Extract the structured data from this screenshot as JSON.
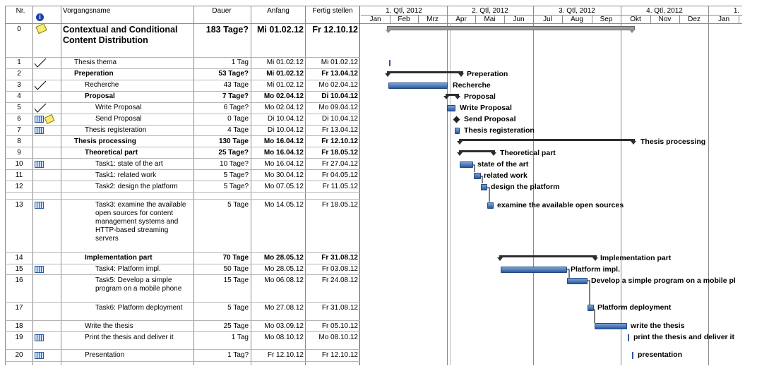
{
  "headers": {
    "nr": "Nr.",
    "name": "Vorgangsname",
    "dauer": "Dauer",
    "anfang": "Anfang",
    "fertig": "Fertig stellen"
  },
  "timeline": {
    "quarters": [
      "1. Qtl, 2012",
      "2. Qtl, 2012",
      "3. Qtl, 2012",
      "4. Qtl, 2012",
      "1."
    ],
    "months": [
      "Jan",
      "Feb",
      "Mrz",
      "Apr",
      "Mai",
      "Jun",
      "Jul",
      "Aug",
      "Sep",
      "Okt",
      "Nov",
      "Dez",
      "Jan"
    ]
  },
  "tasks": [
    {
      "nr": "0",
      "name": "Contextual and Conditional Content Distribution",
      "dauer": "183 Tage?",
      "anfang": "Mi 01.02.12",
      "fertig": "Fr 12.10.12"
    },
    {
      "nr": "1",
      "name": "Thesis thema",
      "dauer": "1 Tag",
      "anfang": "Mi 01.02.12",
      "fertig": "Mi 01.02.12"
    },
    {
      "nr": "2",
      "name": "Preperation",
      "dauer": "53 Tage?",
      "anfang": "Mi 01.02.12",
      "fertig": "Fr 13.04.12"
    },
    {
      "nr": "3",
      "name": "Recherche",
      "dauer": "43 Tage",
      "anfang": "Mi 01.02.12",
      "fertig": "Mo 02.04.12"
    },
    {
      "nr": "4",
      "name": "Proposal",
      "dauer": "7 Tage?",
      "anfang": "Mo 02.04.12",
      "fertig": "Di 10.04.12"
    },
    {
      "nr": "5",
      "name": "Write Proposal",
      "dauer": "6 Tage?",
      "anfang": "Mo 02.04.12",
      "fertig": "Mo 09.04.12"
    },
    {
      "nr": "6",
      "name": "Send Proposal",
      "dauer": "0 Tage",
      "anfang": "Di 10.04.12",
      "fertig": "Di 10.04.12"
    },
    {
      "nr": "7",
      "name": "Thesis registeration",
      "dauer": "4 Tage",
      "anfang": "Di 10.04.12",
      "fertig": "Fr 13.04.12"
    },
    {
      "nr": "8",
      "name": "Thesis processing",
      "dauer": "130 Tage",
      "anfang": "Mo 16.04.12",
      "fertig": "Fr 12.10.12"
    },
    {
      "nr": "9",
      "name": "Theoretical part",
      "dauer": "25 Tage?",
      "anfang": "Mo 16.04.12",
      "fertig": "Fr 18.05.12"
    },
    {
      "nr": "10",
      "name": "Task1: state of the art",
      "dauer": "10 Tage?",
      "anfang": "Mo 16.04.12",
      "fertig": "Fr 27.04.12"
    },
    {
      "nr": "11",
      "name": "Task1: related work",
      "dauer": "5 Tage?",
      "anfang": "Mo 30.04.12",
      "fertig": "Fr 04.05.12"
    },
    {
      "nr": "12",
      "name": "Task2: design the platform",
      "dauer": "5 Tage?",
      "anfang": "Mo 07.05.12",
      "fertig": "Fr 11.05.12"
    },
    {
      "nr": "13",
      "name": "Task3: examine the available open sources for content management systems and HTTP-based streaming servers",
      "dauer": "5 Tage",
      "anfang": "Mo 14.05.12",
      "fertig": "Fr 18.05.12"
    },
    {
      "nr": "14",
      "name": "Implementation part",
      "dauer": "70 Tage",
      "anfang": "Mo 28.05.12",
      "fertig": "Fr 31.08.12"
    },
    {
      "nr": "15",
      "name": "Task4: Platform impl.",
      "dauer": "50 Tage",
      "anfang": "Mo 28.05.12",
      "fertig": "Fr 03.08.12"
    },
    {
      "nr": "16",
      "name": "Task5: Develop a simple program on a mobile phone",
      "dauer": "15 Tage",
      "anfang": "Mo 06.08.12",
      "fertig": "Fr 24.08.12"
    },
    {
      "nr": "17",
      "name": "Task6: Platform deployment",
      "dauer": "5 Tage",
      "anfang": "Mo 27.08.12",
      "fertig": "Fr 31.08.12"
    },
    {
      "nr": "18",
      "name": "Write the thesis",
      "dauer": "25 Tage",
      "anfang": "Mo 03.09.12",
      "fertig": "Fr 05.10.12"
    },
    {
      "nr": "19",
      "name": "Print the thesis and deliver it",
      "dauer": "1 Tag",
      "anfang": "Mo 08.10.12",
      "fertig": "Mo 08.10.12"
    },
    {
      "nr": "20",
      "name": "Presentation",
      "dauer": "1 Tag?",
      "anfang": "Fr 12.10.12",
      "fertig": "Fr 12.10.12"
    }
  ],
  "gantt_labels": {
    "preperation": "Preperation",
    "recherche": "Recherche",
    "proposal": "Proposal",
    "write_proposal": "Write Proposal",
    "send_proposal": "Send Proposal",
    "thesis_registeration": "Thesis registeration",
    "thesis_processing": "Thesis processing",
    "theoretical_part": "Theoretical part",
    "state_of_the_art": "state of the art",
    "related_work": "related work",
    "design_the_platform": "design the platform",
    "examine": "examine the available open sources",
    "implementation_part": "Implementation part",
    "platform_impl": "Platform impl.",
    "develop": "Develop a simple program on a mobile pl",
    "platform_deployment": "Platform deployment",
    "write_the_thesis": "write the thesis",
    "print": "print the thesis and deliver it",
    "presentation": "presentation"
  },
  "colors": {
    "task_bar": "#3d6cb0",
    "summary_bar": "#2e2e2e",
    "project_bar": "#9a9a9a",
    "grid_line": "#8a8a8a"
  },
  "icons": {
    "info": "info-icon",
    "checkmark": "checkmark-icon",
    "note": "note-icon",
    "calendar": "calendar-icon"
  }
}
